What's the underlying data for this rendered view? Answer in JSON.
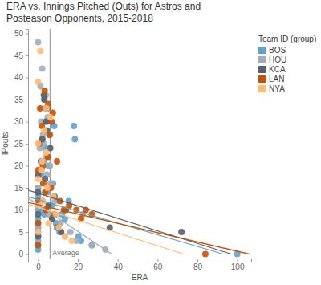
{
  "chart_data": {
    "type": "scatter",
    "title": "ERA vs. Innings Pitched (Outs) for Astros and Posteason Opponents, 2015-2018",
    "x_label": "ERA",
    "y_label": "IPouts",
    "legend_title": "Team ID (group)",
    "legend": "right",
    "marker": "circle",
    "grid": false,
    "xlim": [
      -5,
      107
    ],
    "xticks": [
      0,
      20,
      40,
      60,
      80,
      100
    ],
    "ylim": [
      -1,
      51
    ],
    "yticks": [
      0,
      5,
      10,
      15,
      20,
      25,
      30,
      35,
      40,
      45,
      50
    ],
    "reference_lines": [
      {
        "value": 6,
        "label": "Average"
      }
    ],
    "series": [
      {
        "name": "BOS",
        "color": "#5fa2ce",
        "x": [
          0,
          0,
          0,
          0,
          0,
          0,
          0,
          0,
          0,
          0,
          1.5,
          2.3,
          3.0,
          3.4,
          4.5,
          5.4,
          6.0,
          6.8,
          7.5,
          8.1,
          9.0,
          10.8,
          12.0,
          13.5,
          15.4,
          18.0,
          18.5,
          20.3,
          21.6,
          27.0,
          0,
          2.7,
          4.2,
          3.9,
          1.9,
          5.8,
          2.2,
          100
        ],
        "values": [
          1,
          2,
          3,
          4,
          5,
          6,
          7,
          8,
          10,
          13,
          18,
          12,
          9,
          24,
          14,
          20,
          27,
          11,
          16,
          29,
          7,
          5,
          9,
          8,
          12,
          29,
          26,
          4,
          3,
          2,
          15,
          21,
          30,
          33,
          10,
          11,
          26,
          0
        ],
        "trend": {
          "x": [
            -5,
            93
          ],
          "values": [
            13,
            0
          ]
        }
      },
      {
        "name": "HOU",
        "color": "#a3acb9",
        "x": [
          0,
          0,
          0,
          0,
          0,
          1.2,
          1.8,
          2.5,
          3.0,
          3.6,
          4.1,
          4.8,
          5.6,
          6.3,
          7.2,
          8.4,
          9.8,
          11.3,
          13.5,
          16.2,
          19.3,
          22.5,
          27.0,
          33.8,
          0.9,
          2.1,
          3.9,
          4.5,
          6.0,
          1.5,
          2.8
        ],
        "values": [
          48,
          3,
          6,
          11,
          15,
          38,
          19,
          27,
          35,
          14,
          22,
          31,
          9,
          16,
          8,
          12,
          6,
          7,
          4,
          5,
          3,
          9,
          2,
          1,
          24,
          42,
          36,
          18,
          20,
          30,
          25
        ],
        "trend": {
          "x": [
            -5,
            37
          ],
          "values": [
            12.7,
            0
          ]
        }
      },
      {
        "name": "KCA",
        "color": "#57606c",
        "x": [
          0,
          0,
          0,
          1.4,
          2.1,
          2.9,
          3.5,
          4.0,
          4.7,
          5.2,
          6.1,
          7.0,
          8.3,
          9.6,
          11.6,
          14.0,
          0,
          3.2,
          4.4,
          72,
          36
        ],
        "values": [
          4,
          9,
          14,
          21,
          26,
          36,
          17,
          30,
          33,
          11,
          24,
          8,
          13,
          6,
          5,
          10,
          18,
          35,
          28,
          5,
          6
        ],
        "trend": {
          "x": [
            -5,
            97
          ],
          "values": [
            14.5,
            0
          ]
        }
      },
      {
        "name": "LAN",
        "color": "#c85200",
        "x": [
          0,
          0,
          0,
          0,
          1.0,
          1.9,
          2.6,
          3.3,
          4.0,
          4.9,
          5.7,
          6.5,
          7.4,
          8.2,
          9.5,
          11.0,
          13.0,
          15.6,
          19.3,
          21.6,
          24.0,
          27.0,
          0.5,
          2.4,
          3.6,
          5.1,
          6.8,
          84
        ],
        "values": [
          2,
          7,
          12,
          19,
          33,
          29,
          16,
          37,
          10,
          22,
          27,
          15,
          32,
          9,
          21,
          12,
          10,
          11,
          10,
          8,
          10,
          9,
          25,
          20,
          14,
          34,
          30,
          0
        ],
        "trend": {
          "x": [
            -5,
            106
          ],
          "values": [
            11.7,
            0
          ]
        }
      },
      {
        "name": "NYA",
        "color": "#ffbc79",
        "x": [
          0,
          0,
          0,
          1.1,
          1.6,
          2.5,
          3.1,
          3.9,
          4.6,
          5.3,
          6.2,
          7.7,
          9.0,
          10.4,
          13.5,
          16.9,
          0,
          2.0,
          4.3,
          1.0
        ],
        "values": [
          5,
          17,
          39,
          46,
          19,
          12,
          28,
          23,
          15,
          7,
          31,
          13,
          9,
          6,
          4,
          3,
          25,
          21,
          33,
          11
        ],
        "trend": {
          "x": [
            -5,
            73
          ],
          "values": [
            11.3,
            0
          ]
        }
      }
    ]
  }
}
